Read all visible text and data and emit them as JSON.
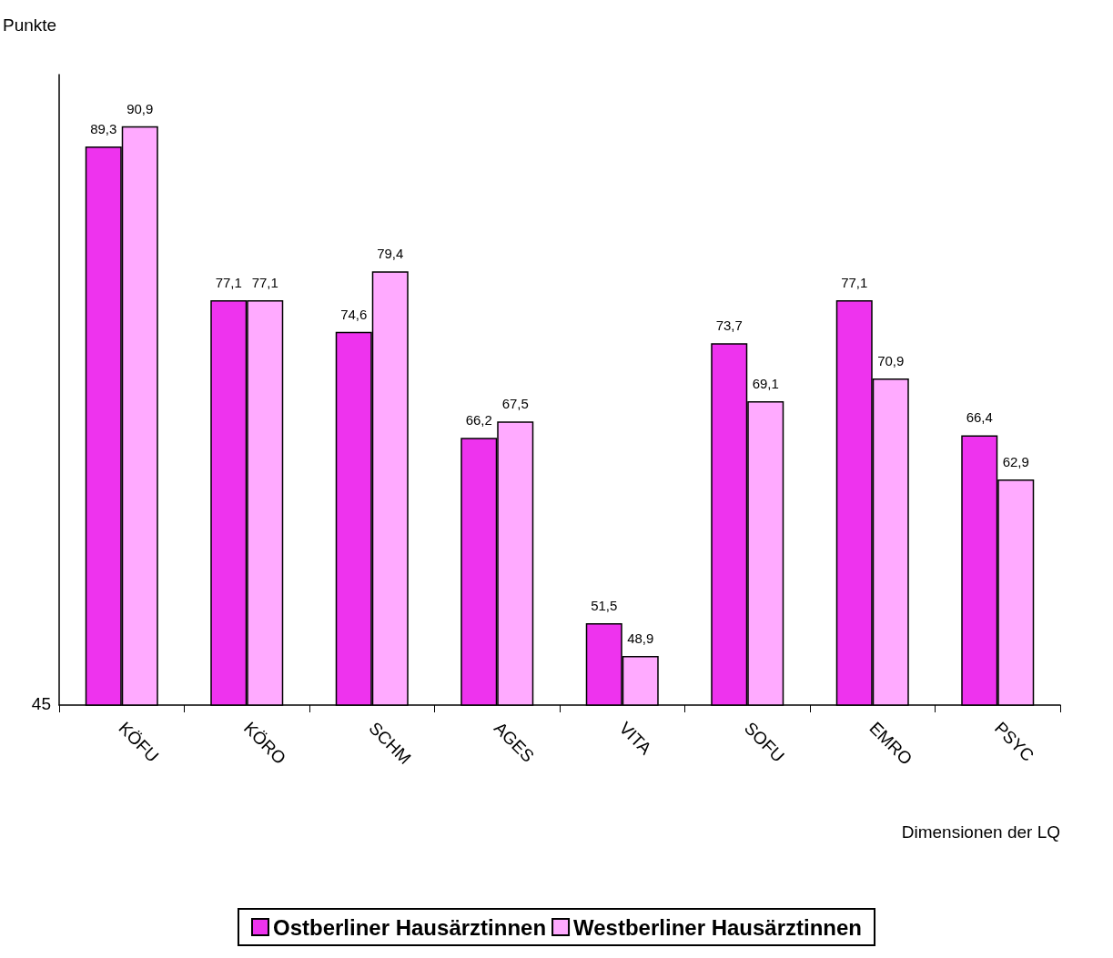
{
  "chart_data": {
    "type": "bar",
    "ylabel": "Punkte",
    "xlabel": "Dimensionen der LQ",
    "categories": [
      "KÖFU",
      "KÖRO",
      "SCHM",
      "AGES",
      "VITA",
      "SOFU",
      "EMRO",
      "PSYC"
    ],
    "series": [
      {
        "name": "Ostberliner Hausärztinnen",
        "color": "#ee33ee",
        "values": [
          89.3,
          77.1,
          74.6,
          66.2,
          51.5,
          73.7,
          77.1,
          66.4
        ],
        "value_labels": [
          "89,3",
          "77,1",
          "74,6",
          "66,2",
          "51,5",
          "73,7",
          "77,1",
          "66,4"
        ]
      },
      {
        "name": "Westberliner Hausärztinnen",
        "color": "#ffaaff",
        "values": [
          90.9,
          77.1,
          79.4,
          67.5,
          48.9,
          69.1,
          70.9,
          62.9
        ],
        "value_labels": [
          "90,9",
          "77,1",
          "79,4",
          "67,5",
          "48,9",
          "69,1",
          "70,9",
          "62,9"
        ]
      }
    ],
    "ylim": [
      45,
      95
    ],
    "annotations": [
      "45"
    ],
    "legend": "bottom"
  }
}
